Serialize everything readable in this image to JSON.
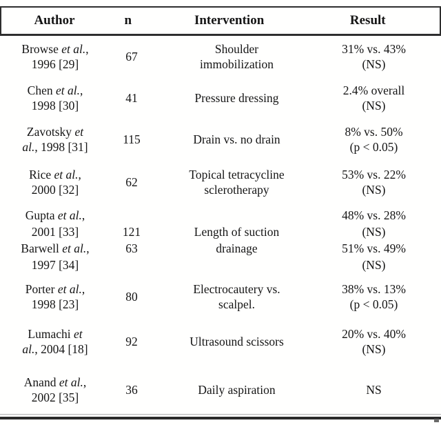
{
  "colors": {
    "ink": "#151515",
    "rule_dark": "#2e2e2e",
    "rule_light": "#b0b0b0",
    "background": "#ffffff"
  },
  "table": {
    "header": {
      "author": "Author",
      "n": "n",
      "intervention": "Intervention",
      "result": "Result"
    },
    "rows": [
      {
        "author": [
          [
            {
              "t": "Browse "
            },
            {
              "t": "et al.",
              "i": true
            },
            {
              "t": ","
            }
          ],
          [
            {
              "t": "1996 [29]"
            }
          ]
        ],
        "n": [
          [
            {
              "t": "67"
            }
          ]
        ],
        "intervention": [
          [
            {
              "t": "Shoulder"
            }
          ],
          [
            {
              "t": "immobilization"
            }
          ]
        ],
        "result": [
          [
            {
              "t": "31% vs. 43%"
            }
          ],
          [
            {
              "t": "(NS)"
            }
          ]
        ]
      },
      {
        "author": [
          [
            {
              "t": "Chen "
            },
            {
              "t": "et al.",
              "i": true
            },
            {
              "t": ","
            }
          ],
          [
            {
              "t": "1998 [30]"
            }
          ]
        ],
        "n": [
          [
            {
              "t": "41"
            }
          ]
        ],
        "intervention": [
          [
            {
              "t": "Pressure dressing"
            }
          ]
        ],
        "result": [
          [
            {
              "t": "2.4% overall"
            }
          ],
          [
            {
              "t": "(NS)"
            }
          ]
        ]
      },
      {
        "author": [
          [
            {
              "t": "Zavotsky "
            },
            {
              "t": "et",
              "i": true
            }
          ],
          [
            {
              "t": "al.",
              "i": true
            },
            {
              "t": ", 1998 [31]"
            }
          ]
        ],
        "n": [
          [
            {
              "t": "115"
            }
          ]
        ],
        "intervention": [
          [
            {
              "t": "Drain vs. no drain"
            }
          ]
        ],
        "result": [
          [
            {
              "t": "8% vs. 50%"
            }
          ],
          [
            {
              "t": "(p < 0.05)"
            }
          ]
        ]
      },
      {
        "author": [
          [
            {
              "t": "Rice "
            },
            {
              "t": "et al.",
              "i": true
            },
            {
              "t": ","
            }
          ],
          [
            {
              "t": "2000 [32]"
            }
          ]
        ],
        "n": [
          [
            {
              "t": "62"
            }
          ]
        ],
        "intervention": [
          [
            {
              "t": "Topical tetracycline"
            }
          ],
          [
            {
              "t": "sclerotherapy"
            }
          ]
        ],
        "result": [
          [
            {
              "t": "53% vs. 22%"
            }
          ],
          [
            {
              "t": "(NS)"
            }
          ]
        ]
      },
      {
        "author": [
          [
            {
              "t": "Gupta "
            },
            {
              "t": "et al.",
              "i": true
            },
            {
              "t": ","
            }
          ],
          [
            {
              "t": "2001 [33]"
            }
          ],
          [
            {
              "t": "Barwell "
            },
            {
              "t": "et al.",
              "i": true
            },
            {
              "t": ","
            }
          ],
          [
            {
              "t": "1997 [34]"
            }
          ]
        ],
        "n": [
          [],
          [
            {
              "t": "121"
            }
          ],
          [
            {
              "t": "63"
            }
          ],
          []
        ],
        "intervention": [
          [],
          [
            {
              "t": "Length of suction"
            }
          ],
          [
            {
              "t": "drainage"
            }
          ],
          []
        ],
        "result": [
          [
            {
              "t": "48% vs. 28%"
            }
          ],
          [
            {
              "t": "(NS)"
            }
          ],
          [
            {
              "t": "51% vs. 49%"
            }
          ],
          [
            {
              "t": "(NS)"
            }
          ]
        ]
      },
      {
        "author": [
          [
            {
              "t": "Porter "
            },
            {
              "t": "et al.",
              "i": true
            },
            {
              "t": ","
            }
          ],
          [
            {
              "t": "1998 [23]"
            }
          ]
        ],
        "n": [
          [
            {
              "t": "80"
            }
          ]
        ],
        "intervention": [
          [
            {
              "t": "Electrocautery vs."
            }
          ],
          [
            {
              "t": "scalpel."
            }
          ]
        ],
        "result": [
          [
            {
              "t": "38% vs. 13%"
            }
          ],
          [
            {
              "t": "(p < 0.05)"
            }
          ]
        ]
      },
      {
        "author": [
          [
            {
              "t": "Lumachi "
            },
            {
              "t": "et",
              "i": true
            }
          ],
          [
            {
              "t": "al.",
              "i": true
            },
            {
              "t": ", 2004 [18]"
            }
          ]
        ],
        "n": [
          [
            {
              "t": "92"
            }
          ]
        ],
        "intervention": [
          [
            {
              "t": "Ultrasound scissors"
            }
          ]
        ],
        "result": [
          [
            {
              "t": "20% vs. 40%"
            }
          ],
          [
            {
              "t": "(NS)"
            }
          ]
        ]
      },
      {
        "author": [
          [
            {
              "t": "Anand "
            },
            {
              "t": "et al.",
              "i": true
            },
            {
              "t": ","
            }
          ],
          [
            {
              "t": "2002 [35]"
            }
          ]
        ],
        "n": [
          [
            {
              "t": "36"
            }
          ]
        ],
        "intervention": [
          [
            {
              "t": "Daily aspiration"
            }
          ]
        ],
        "result": [
          [
            {
              "t": "NS"
            }
          ]
        ]
      }
    ]
  }
}
